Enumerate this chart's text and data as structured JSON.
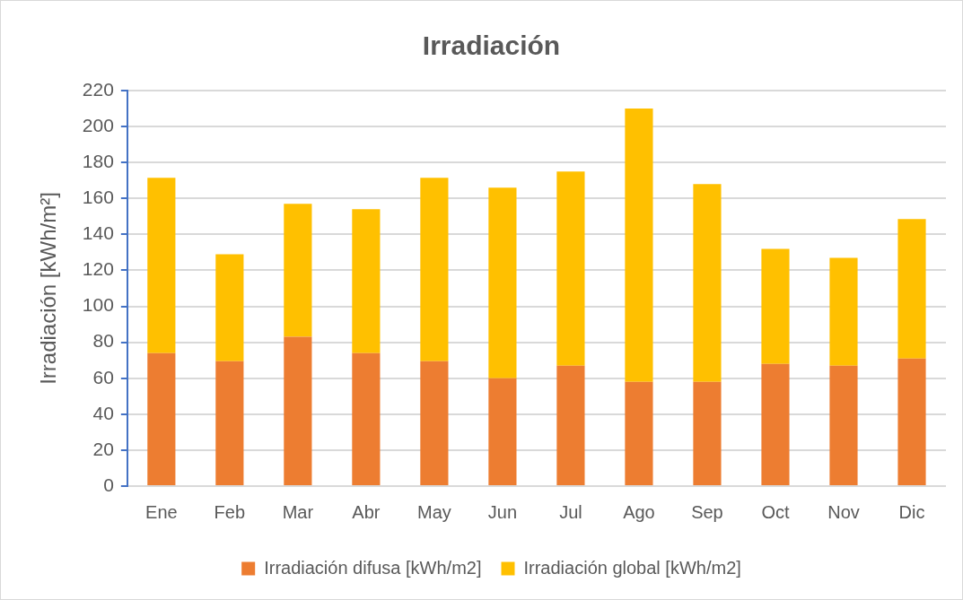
{
  "chart_data": {
    "type": "bar",
    "title": "Irradiación",
    "ylabel": "Irradiación [kWh/m²]",
    "categories": [
      "Ene",
      "Feb",
      "Mar",
      "Abr",
      "May",
      "Jun",
      "Jul",
      "Ago",
      "Sep",
      "Oct",
      "Nov",
      "Dic"
    ],
    "series": [
      {
        "name": "Irradiación difusa [kWh/m2]",
        "color": "#ed7d31",
        "values": [
          74,
          69.5,
          83,
          74,
          69.5,
          60,
          67,
          58,
          58,
          68,
          67,
          71
        ]
      },
      {
        "name": "Irradiación global [kWh/m2]",
        "color": "#ffc000",
        "values": [
          97.5,
          59.5,
          74,
          80,
          102,
          106,
          108,
          152,
          110,
          64,
          60,
          77.5
        ]
      }
    ],
    "stacked": true,
    "ylim": [
      0,
      220
    ],
    "yticks": [
      0,
      20,
      40,
      60,
      80,
      100,
      120,
      140,
      160,
      180,
      200,
      220
    ],
    "grid": "y",
    "legend": "bottom"
  }
}
